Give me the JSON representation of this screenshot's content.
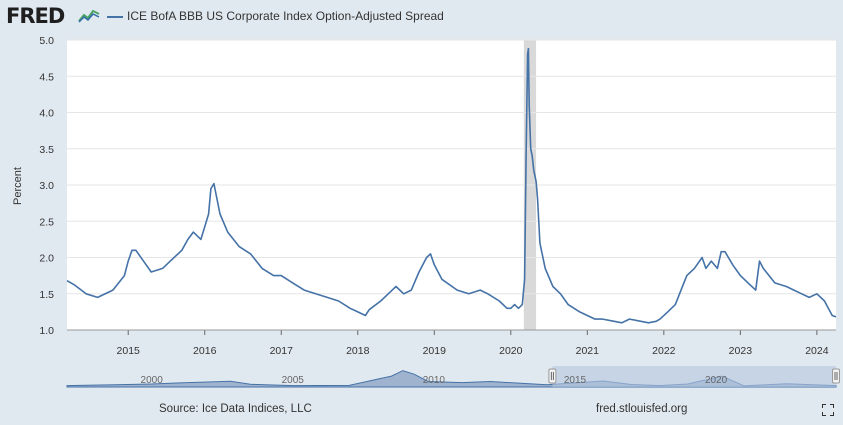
{
  "header": {
    "logo_text": "FRED",
    "series_label": "ICE BofA BBB US Corporate Index Option-Adjusted Spread"
  },
  "footer": {
    "source": "Source: Ice Data Indices, LLC",
    "site": "fred.stlouisfed.org"
  },
  "colors": {
    "series": "#4572a7",
    "recession": "#d9d9d9",
    "grid": "#e6e6e6",
    "background": "#e1e9f0",
    "plot": "#ffffff",
    "navigator_fill": "#9fb3cf",
    "navigator_selected": "#b4c6e0"
  },
  "icons": {
    "logo_chart": "line-chart-icon",
    "fullscreen": "fullscreen-icon"
  },
  "chart_data": {
    "type": "line",
    "title": "",
    "ylabel": "Percent",
    "xlabel": "",
    "ylim": [
      1.0,
      5.0
    ],
    "yticks": [
      "1.0",
      "1.5",
      "2.0",
      "2.5",
      "3.0",
      "3.5",
      "4.0",
      "4.5",
      "5.0"
    ],
    "xticks": [
      "2015",
      "2016",
      "2017",
      "2018",
      "2019",
      "2020",
      "2021",
      "2022",
      "2023",
      "2024"
    ],
    "xlim": [
      2014.2,
      2024.25
    ],
    "grid": true,
    "legend": "top-left",
    "recession_bands": [
      [
        2020.17,
        2020.33
      ]
    ],
    "series": [
      {
        "name": "ICE BofA BBB US Corporate Index Option-Adjusted Spread",
        "x": [
          2014.2,
          2014.3,
          2014.45,
          2014.6,
          2014.8,
          2014.95,
          2015.0,
          2015.05,
          2015.1,
          2015.2,
          2015.3,
          2015.45,
          2015.55,
          2015.7,
          2015.78,
          2015.85,
          2015.95,
          2016.05,
          2016.08,
          2016.12,
          2016.2,
          2016.3,
          2016.45,
          2016.6,
          2016.75,
          2016.9,
          2017.0,
          2017.15,
          2017.3,
          2017.45,
          2017.6,
          2017.75,
          2017.9,
          2018.0,
          2018.1,
          2018.15,
          2018.3,
          2018.45,
          2018.5,
          2018.6,
          2018.7,
          2018.8,
          2018.9,
          2018.95,
          2019.0,
          2019.1,
          2019.3,
          2019.45,
          2019.6,
          2019.7,
          2019.85,
          2019.95,
          2020.0,
          2020.05,
          2020.1,
          2020.15,
          2020.18,
          2020.2,
          2020.22,
          2020.23,
          2020.24,
          2020.26,
          2020.28,
          2020.3,
          2020.33,
          2020.35,
          2020.38,
          2020.45,
          2020.55,
          2020.65,
          2020.75,
          2020.9,
          2021.0,
          2021.1,
          2021.2,
          2021.35,
          2021.45,
          2021.55,
          2021.7,
          2021.8,
          2021.9,
          2021.95,
          2022.05,
          2022.15,
          2022.3,
          2022.4,
          2022.5,
          2022.55,
          2022.62,
          2022.7,
          2022.75,
          2022.8,
          2022.9,
          2023.0,
          2023.1,
          2023.2,
          2023.25,
          2023.3,
          2023.45,
          2023.6,
          2023.7,
          2023.8,
          2023.9,
          2024.0,
          2024.1,
          2024.2,
          2024.25
        ],
        "y": [
          1.68,
          1.62,
          1.5,
          1.45,
          1.55,
          1.75,
          1.95,
          2.1,
          2.1,
          1.95,
          1.8,
          1.85,
          1.95,
          2.1,
          2.25,
          2.35,
          2.25,
          2.6,
          2.95,
          3.02,
          2.6,
          2.35,
          2.15,
          2.05,
          1.85,
          1.75,
          1.75,
          1.65,
          1.55,
          1.5,
          1.45,
          1.4,
          1.3,
          1.25,
          1.2,
          1.28,
          1.4,
          1.55,
          1.6,
          1.5,
          1.55,
          1.8,
          2.0,
          2.05,
          1.9,
          1.7,
          1.55,
          1.5,
          1.55,
          1.5,
          1.4,
          1.3,
          1.3,
          1.35,
          1.3,
          1.35,
          1.7,
          3.4,
          4.8,
          4.88,
          4.1,
          3.5,
          3.4,
          3.2,
          3.05,
          2.8,
          2.2,
          1.85,
          1.6,
          1.5,
          1.35,
          1.25,
          1.2,
          1.15,
          1.15,
          1.12,
          1.1,
          1.15,
          1.12,
          1.1,
          1.12,
          1.15,
          1.25,
          1.35,
          1.75,
          1.85,
          2.0,
          1.85,
          1.95,
          1.85,
          2.08,
          2.08,
          1.9,
          1.75,
          1.65,
          1.55,
          1.95,
          1.85,
          1.65,
          1.6,
          1.55,
          1.5,
          1.45,
          1.5,
          1.4,
          1.2,
          1.18
        ]
      }
    ],
    "navigator": {
      "labels": [
        "2000",
        "2005",
        "2010",
        "2015",
        "2020"
      ],
      "selected_range": [
        2014.2,
        2024.25
      ]
    }
  }
}
